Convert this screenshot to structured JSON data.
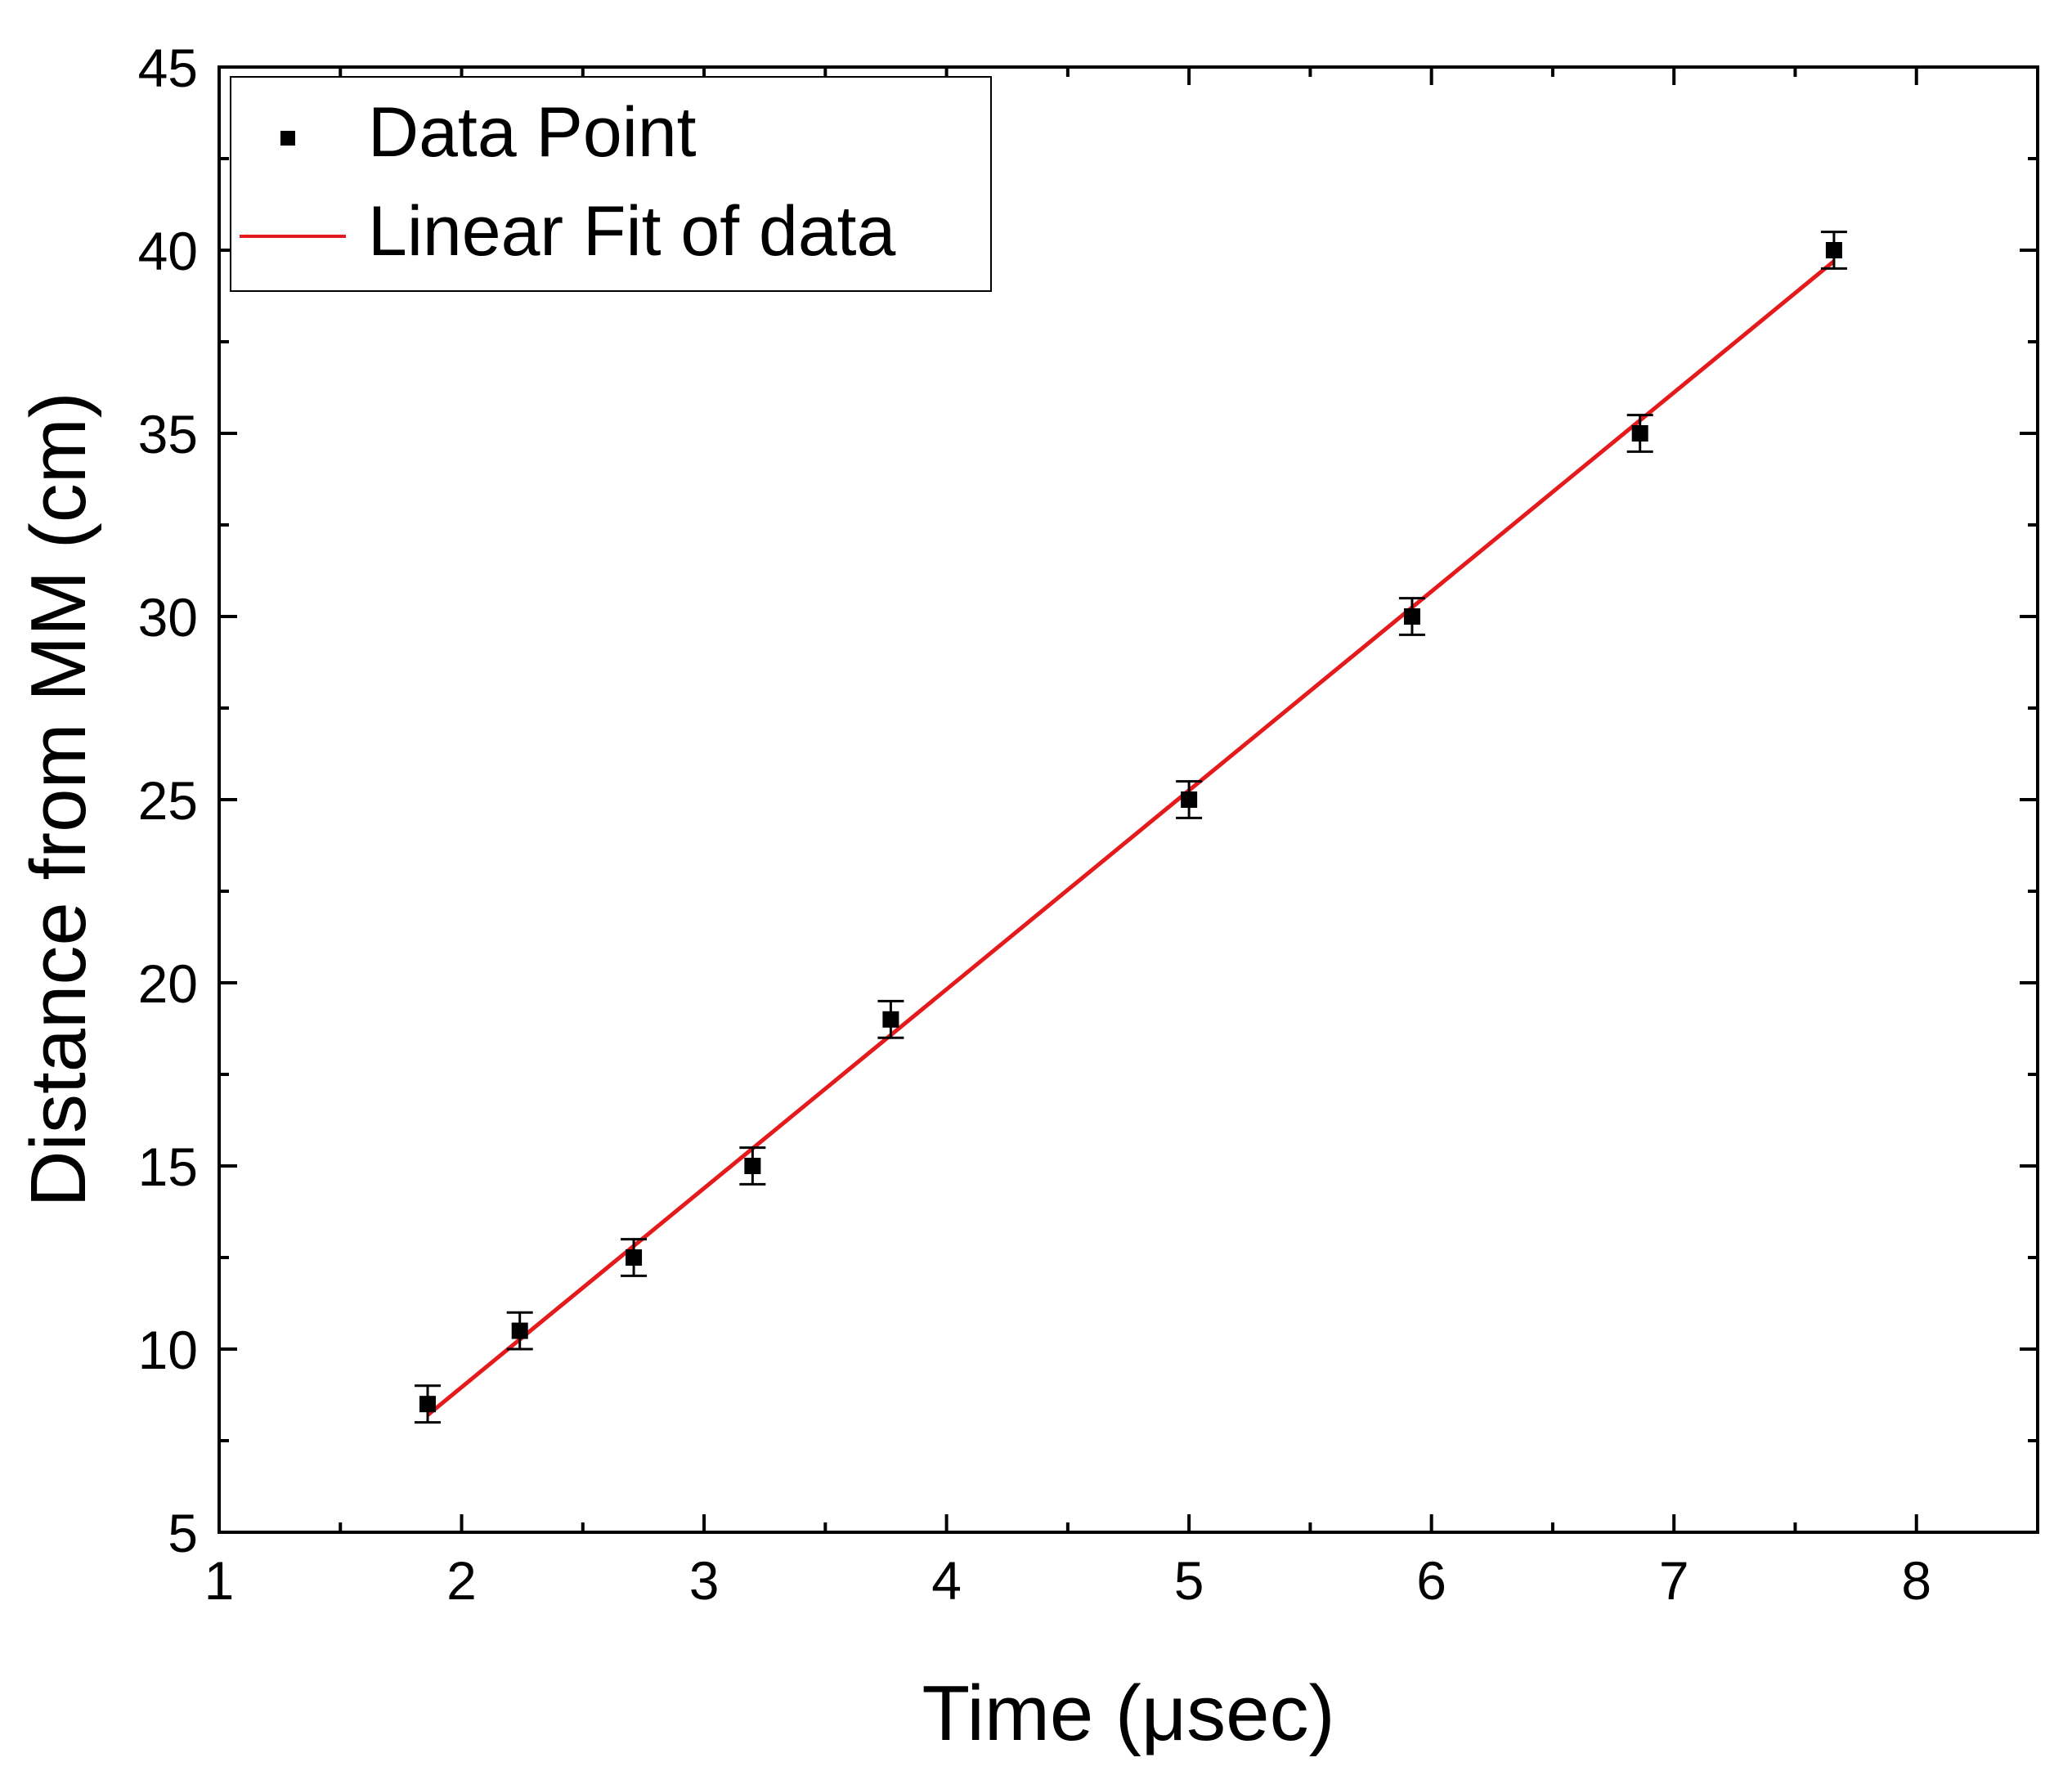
{
  "chart_data": {
    "type": "scatter",
    "title": "",
    "xlabel": "Time (μsec)",
    "ylabel": "Distance from MM (cm)",
    "xlim": [
      1,
      8.5
    ],
    "ylim": [
      5,
      45
    ],
    "x_ticks": [
      1,
      2,
      3,
      4,
      5,
      6,
      7,
      8
    ],
    "y_ticks": [
      5,
      10,
      15,
      20,
      25,
      30,
      35,
      40,
      45
    ],
    "x_minor_step": 0.5,
    "y_minor_step": 2.5,
    "grid": false,
    "legend_position": "top-left",
    "series": [
      {
        "name": "Data Point",
        "kind": "points",
        "marker": "square",
        "color": "#000000",
        "x": [
          1.86,
          2.24,
          2.71,
          3.2,
          3.77,
          5.0,
          5.92,
          6.86,
          7.66
        ],
        "y": [
          8.5,
          10.5,
          12.5,
          15.0,
          19.0,
          25.0,
          30.0,
          35.0,
          40.0
        ],
        "error": [
          0.5,
          0.5,
          0.5,
          0.5,
          0.5,
          0.5,
          0.5,
          0.5,
          0.5
        ]
      },
      {
        "name": "Linear Fit of data",
        "kind": "line",
        "color": "#e41a1c",
        "x": [
          1.86,
          7.66
        ],
        "y": [
          8.2,
          39.7
        ]
      }
    ]
  }
}
